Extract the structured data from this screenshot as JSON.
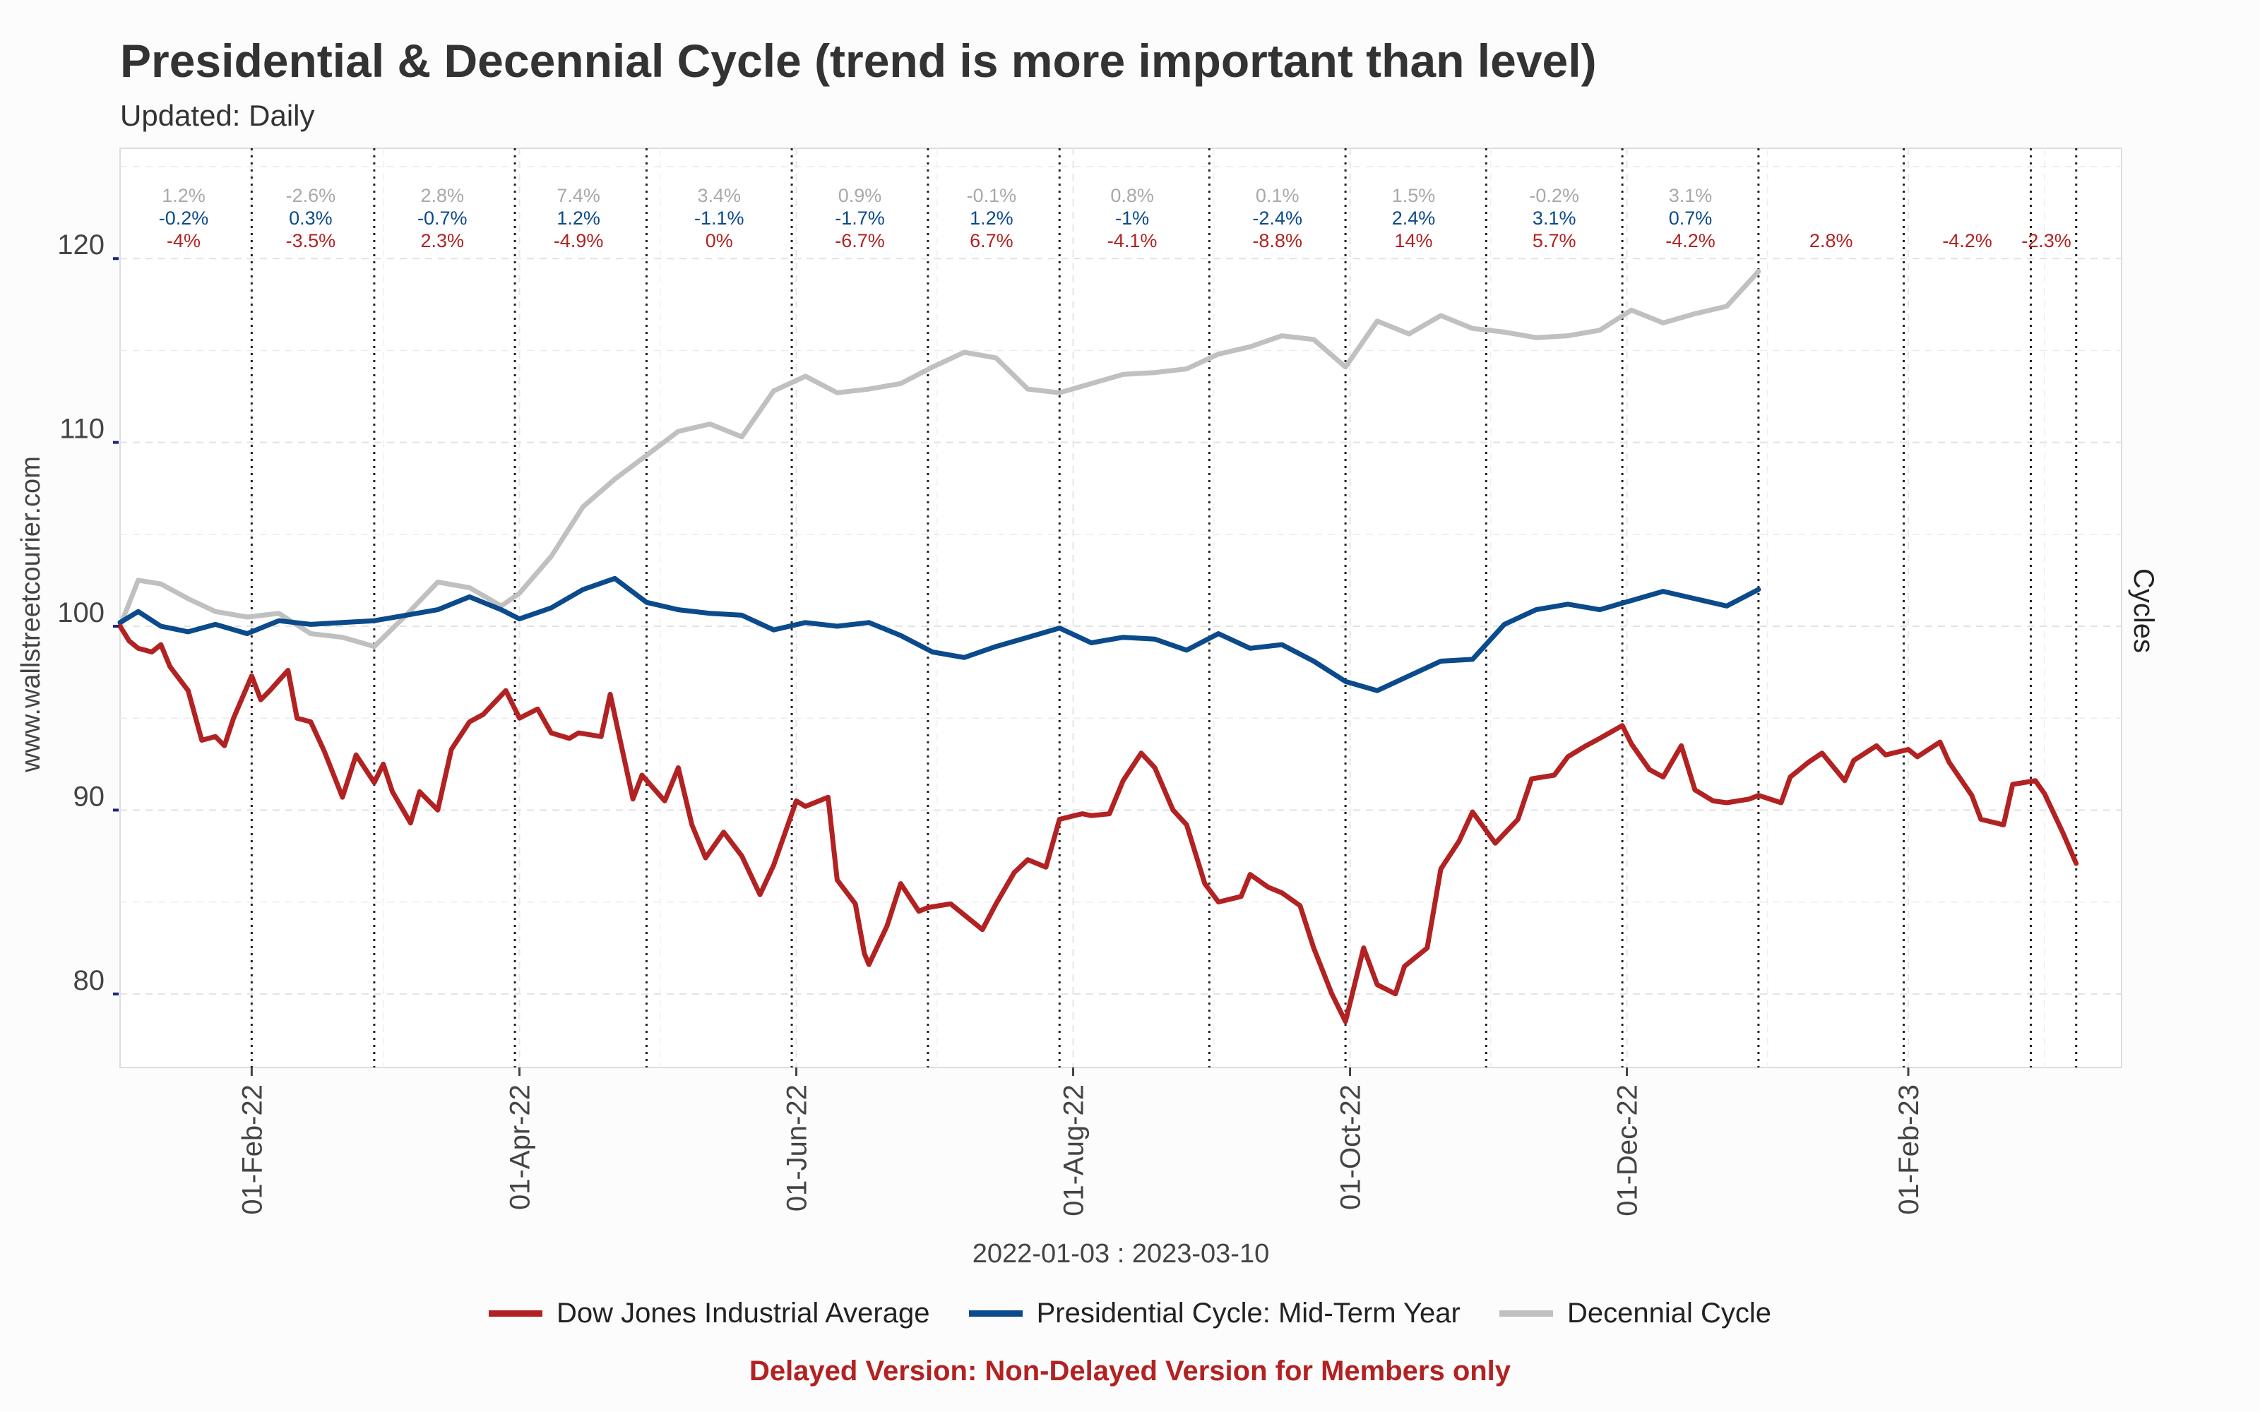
{
  "chart_data": {
    "type": "line",
    "title": "Presidential & Decennial Cycle (trend is more important than level)",
    "subtitle": "Updated: Daily",
    "xlabel": "2022-01-03 : 2023-03-10",
    "ylabel": "www.wallstreetcourier.com",
    "right_label": "Cycles",
    "xlim": [
      "2022-01-03",
      "2023-03-20"
    ],
    "ylim": [
      76,
      126
    ],
    "yticks": [
      80,
      90,
      100,
      110,
      120
    ],
    "xticks": [
      {
        "date": "2022-02-01",
        "label": "01-Feb-22"
      },
      {
        "date": "2022-04-01",
        "label": "01-Apr-22"
      },
      {
        "date": "2022-06-01",
        "label": "01-Jun-22"
      },
      {
        "date": "2022-08-01",
        "label": "01-Aug-22"
      },
      {
        "date": "2022-10-01",
        "label": "01-Oct-22"
      },
      {
        "date": "2022-12-01",
        "label": "01-Dec-22"
      },
      {
        "date": "2023-02-01",
        "label": "01-Feb-23"
      }
    ],
    "grid": true,
    "legend_position": "bottom",
    "month_separators": [
      "2022-02-01",
      "2022-02-28",
      "2022-03-31",
      "2022-04-29",
      "2022-05-31",
      "2022-06-30",
      "2022-07-29",
      "2022-08-31",
      "2022-09-30",
      "2022-10-31",
      "2022-11-30",
      "2022-12-30",
      "2023-01-31",
      "2023-02-28",
      "2023-03-10"
    ],
    "annotations": {
      "decennial": [
        "1.2%",
        "-2.6%",
        "2.8%",
        "7.4%",
        "3.4%",
        "0.9%",
        "-0.1%",
        "0.8%",
        "0.1%",
        "1.5%",
        "-0.2%",
        "3.1%"
      ],
      "presidential": [
        "-0.2%",
        "0.3%",
        "-0.7%",
        "1.2%",
        "-1.1%",
        "-1.7%",
        "1.2%",
        "-1%",
        "-2.4%",
        "2.4%",
        "3.1%",
        "0.7%"
      ],
      "dow": [
        "-4%",
        "-3.5%",
        "2.3%",
        "-4.9%",
        "0%",
        "-6.7%",
        "6.7%",
        "-4.1%",
        "-8.8%",
        "14%",
        "5.7%",
        "-4.2%",
        "2.8%",
        "-4.2%",
        "-2.3%"
      ]
    },
    "series": [
      {
        "name": "Dow Jones Industrial Average",
        "color": "#b22222",
        "x": [
          "2022-01-03",
          "2022-01-05",
          "2022-01-07",
          "2022-01-10",
          "2022-01-12",
          "2022-01-14",
          "2022-01-18",
          "2022-01-21",
          "2022-01-24",
          "2022-01-26",
          "2022-01-28",
          "2022-02-01",
          "2022-02-03",
          "2022-02-05",
          "2022-02-09",
          "2022-02-11",
          "2022-02-14",
          "2022-02-17",
          "2022-02-21",
          "2022-02-24",
          "2022-02-28",
          "2022-03-02",
          "2022-03-04",
          "2022-03-08",
          "2022-03-10",
          "2022-03-14",
          "2022-03-17",
          "2022-03-21",
          "2022-03-24",
          "2022-03-29",
          "2022-04-01",
          "2022-04-05",
          "2022-04-08",
          "2022-04-12",
          "2022-04-14",
          "2022-04-19",
          "2022-04-21",
          "2022-04-26",
          "2022-04-28",
          "2022-05-03",
          "2022-05-06",
          "2022-05-09",
          "2022-05-12",
          "2022-05-16",
          "2022-05-20",
          "2022-05-24",
          "2022-05-27",
          "2022-06-01",
          "2022-06-03",
          "2022-06-08",
          "2022-06-10",
          "2022-06-14",
          "2022-06-16",
          "2022-06-17",
          "2022-06-21",
          "2022-06-24",
          "2022-06-28",
          "2022-06-30",
          "2022-07-05",
          "2022-07-08",
          "2022-07-12",
          "2022-07-15",
          "2022-07-19",
          "2022-07-22",
          "2022-07-26",
          "2022-07-29",
          "2022-08-03",
          "2022-08-05",
          "2022-08-09",
          "2022-08-12",
          "2022-08-16",
          "2022-08-19",
          "2022-08-23",
          "2022-08-26",
          "2022-08-30",
          "2022-09-02",
          "2022-09-07",
          "2022-09-09",
          "2022-09-13",
          "2022-09-16",
          "2022-09-20",
          "2022-09-23",
          "2022-09-27",
          "2022-09-30",
          "2022-10-04",
          "2022-10-07",
          "2022-10-11",
          "2022-10-13",
          "2022-10-18",
          "2022-10-21",
          "2022-10-25",
          "2022-10-28",
          "2022-11-02",
          "2022-11-07",
          "2022-11-10",
          "2022-11-15",
          "2022-11-18",
          "2022-11-22",
          "2022-11-25",
          "2022-11-30",
          "2022-12-02",
          "2022-12-06",
          "2022-12-09",
          "2022-12-13",
          "2022-12-16",
          "2022-12-20",
          "2022-12-23",
          "2022-12-28",
          "2022-12-30",
          "2023-01-04",
          "2023-01-06",
          "2023-01-10",
          "2023-01-13",
          "2023-01-18",
          "2023-01-20",
          "2023-01-25",
          "2023-01-27",
          "2023-02-01",
          "2023-02-03",
          "2023-02-08",
          "2023-02-10",
          "2023-02-15",
          "2023-02-17",
          "2023-02-22",
          "2023-02-24",
          "2023-03-01",
          "2023-03-03",
          "2023-03-07",
          "2023-03-10"
        ],
        "values": [
          100.0,
          99.2,
          98.8,
          98.6,
          99.0,
          97.8,
          96.5,
          93.8,
          94.0,
          93.5,
          95.0,
          97.3,
          96.0,
          96.5,
          97.6,
          95.0,
          94.8,
          93.2,
          90.7,
          93.0,
          91.5,
          92.5,
          91.0,
          89.3,
          91.0,
          90.0,
          93.3,
          94.8,
          95.2,
          96.5,
          95.0,
          95.5,
          94.2,
          93.9,
          94.2,
          94.0,
          96.3,
          90.6,
          91.9,
          90.5,
          92.3,
          89.2,
          87.4,
          88.8,
          87.5,
          85.4,
          87.0,
          90.5,
          90.2,
          90.7,
          86.2,
          84.9,
          82.2,
          81.6,
          83.7,
          86.0,
          84.5,
          84.7,
          84.9,
          84.3,
          83.5,
          84.9,
          86.6,
          87.3,
          86.9,
          89.5,
          89.8,
          89.7,
          89.8,
          91.6,
          93.1,
          92.3,
          90.0,
          89.2,
          86.0,
          85.0,
          85.3,
          86.5,
          85.8,
          85.5,
          84.8,
          82.5,
          80.0,
          78.5,
          82.5,
          80.5,
          80.0,
          81.5,
          82.5,
          86.8,
          88.3,
          89.9,
          88.2,
          89.5,
          91.7,
          91.9,
          92.9,
          93.5,
          93.9,
          94.6,
          93.6,
          92.2,
          91.8,
          93.5,
          91.1,
          90.5,
          90.4,
          90.6,
          90.8,
          90.4,
          91.8,
          92.6,
          93.1,
          91.6,
          92.7,
          93.5,
          93.0,
          93.3,
          92.9,
          93.7,
          92.6,
          90.8,
          89.5,
          89.2,
          91.4,
          91.6,
          90.9,
          88.8,
          87.1
        ]
      },
      {
        "name": "Presidential Cycle: Mid-Term Year",
        "color": "#0b4a8b",
        "x": [
          "2022-01-03",
          "2022-01-07",
          "2022-01-12",
          "2022-01-18",
          "2022-01-24",
          "2022-01-31",
          "2022-02-07",
          "2022-02-14",
          "2022-02-21",
          "2022-02-28",
          "2022-03-07",
          "2022-03-14",
          "2022-03-21",
          "2022-03-28",
          "2022-04-01",
          "2022-04-08",
          "2022-04-15",
          "2022-04-22",
          "2022-04-29",
          "2022-05-06",
          "2022-05-13",
          "2022-05-20",
          "2022-05-27",
          "2022-06-03",
          "2022-06-10",
          "2022-06-17",
          "2022-06-24",
          "2022-07-01",
          "2022-07-08",
          "2022-07-15",
          "2022-07-22",
          "2022-07-29",
          "2022-08-05",
          "2022-08-12",
          "2022-08-19",
          "2022-08-26",
          "2022-09-02",
          "2022-09-09",
          "2022-09-16",
          "2022-09-23",
          "2022-09-30",
          "2022-10-07",
          "2022-10-14",
          "2022-10-21",
          "2022-10-28",
          "2022-11-04",
          "2022-11-11",
          "2022-11-18",
          "2022-11-25",
          "2022-12-02",
          "2022-12-09",
          "2022-12-16",
          "2022-12-23",
          "2022-12-30"
        ],
        "values": [
          100.2,
          100.8,
          100.0,
          99.7,
          100.1,
          99.6,
          100.3,
          100.1,
          100.2,
          100.3,
          100.6,
          100.9,
          101.6,
          100.9,
          100.4,
          101.0,
          102.0,
          102.6,
          101.3,
          100.9,
          100.7,
          100.6,
          99.8,
          100.2,
          100.0,
          100.2,
          99.5,
          98.6,
          98.3,
          98.9,
          99.4,
          99.9,
          99.1,
          99.4,
          99.3,
          98.7,
          99.6,
          98.8,
          99.0,
          98.1,
          97.0,
          96.5,
          97.3,
          98.1,
          98.2,
          100.1,
          100.9,
          101.2,
          100.9,
          101.4,
          101.9,
          101.5,
          101.1,
          102.0
        ]
      },
      {
        "name": "Decennial Cycle",
        "color": "#c0c0c0",
        "x": [
          "2022-01-03",
          "2022-01-07",
          "2022-01-12",
          "2022-01-18",
          "2022-01-24",
          "2022-01-31",
          "2022-02-07",
          "2022-02-14",
          "2022-02-21",
          "2022-02-28",
          "2022-03-07",
          "2022-03-14",
          "2022-03-21",
          "2022-03-28",
          "2022-04-01",
          "2022-04-08",
          "2022-04-15",
          "2022-04-22",
          "2022-04-29",
          "2022-05-06",
          "2022-05-13",
          "2022-05-20",
          "2022-05-27",
          "2022-06-03",
          "2022-06-10",
          "2022-06-17",
          "2022-06-24",
          "2022-07-01",
          "2022-07-08",
          "2022-07-15",
          "2022-07-22",
          "2022-07-29",
          "2022-08-05",
          "2022-08-12",
          "2022-08-19",
          "2022-08-26",
          "2022-09-02",
          "2022-09-09",
          "2022-09-16",
          "2022-09-23",
          "2022-09-30",
          "2022-10-07",
          "2022-10-14",
          "2022-10-21",
          "2022-10-28",
          "2022-11-04",
          "2022-11-11",
          "2022-11-18",
          "2022-11-25",
          "2022-12-02",
          "2022-12-09",
          "2022-12-16",
          "2022-12-23",
          "2022-12-30"
        ],
        "values": [
          100.0,
          102.5,
          102.3,
          101.5,
          100.8,
          100.5,
          100.7,
          99.6,
          99.4,
          98.9,
          100.6,
          102.4,
          102.1,
          101.1,
          101.8,
          103.8,
          106.5,
          108.0,
          109.3,
          110.6,
          111.0,
          110.3,
          112.8,
          113.6,
          112.7,
          112.9,
          113.2,
          114.1,
          114.9,
          114.6,
          112.9,
          112.7,
          113.2,
          113.7,
          113.8,
          114.0,
          114.8,
          115.2,
          115.8,
          115.6,
          114.1,
          116.6,
          115.9,
          116.9,
          116.2,
          116.0,
          115.7,
          115.8,
          116.1,
          117.2,
          116.5,
          117.0,
          117.4,
          119.3
        ]
      }
    ]
  },
  "legend": {
    "items": [
      {
        "label": "Dow Jones Industrial Average",
        "color": "#b22222"
      },
      {
        "label": "Presidential Cycle: Mid-Term Year",
        "color": "#0b4a8b"
      },
      {
        "label": "Decennial Cycle",
        "color": "#c0c0c0"
      }
    ]
  },
  "footer": {
    "note": "Delayed Version: Non-Delayed Version for Members only"
  }
}
